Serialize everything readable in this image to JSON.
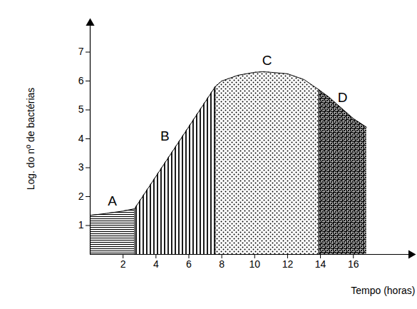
{
  "chart_data": {
    "type": "area",
    "x_label": "Tempo (horas)",
    "y_label": "Log. do nº de bactérias",
    "xlim": [
      0,
      19.5
    ],
    "xticks": [
      2,
      4,
      6,
      8,
      10,
      12,
      14,
      16
    ],
    "ylim": [
      0,
      8
    ],
    "yticks": [
      1,
      2,
      3,
      4,
      5,
      6,
      7
    ],
    "grid": false,
    "color": "#000000",
    "series": [
      {
        "name": "A",
        "x": [
          0,
          1,
          2,
          2.7
        ],
        "values": [
          1.35,
          1.42,
          1.5,
          1.58
        ]
      },
      {
        "name": "B",
        "x": [
          2.7,
          3.5,
          4.5,
          5.5,
          6.5,
          7.6
        ],
        "values": [
          1.58,
          2.27,
          3.13,
          3.99,
          4.85,
          5.8
        ]
      },
      {
        "name": "C",
        "x": [
          7.6,
          8,
          9,
          10,
          10.5,
          11,
          12,
          13,
          13.9
        ],
        "values": [
          5.8,
          6.0,
          6.2,
          6.3,
          6.32,
          6.3,
          6.25,
          6.05,
          5.7
        ]
      },
      {
        "name": "D",
        "x": [
          13.9,
          14.5,
          15,
          15.5,
          16,
          16.8
        ],
        "values": [
          5.7,
          5.45,
          5.2,
          4.95,
          4.7,
          4.4
        ]
      }
    ]
  }
}
